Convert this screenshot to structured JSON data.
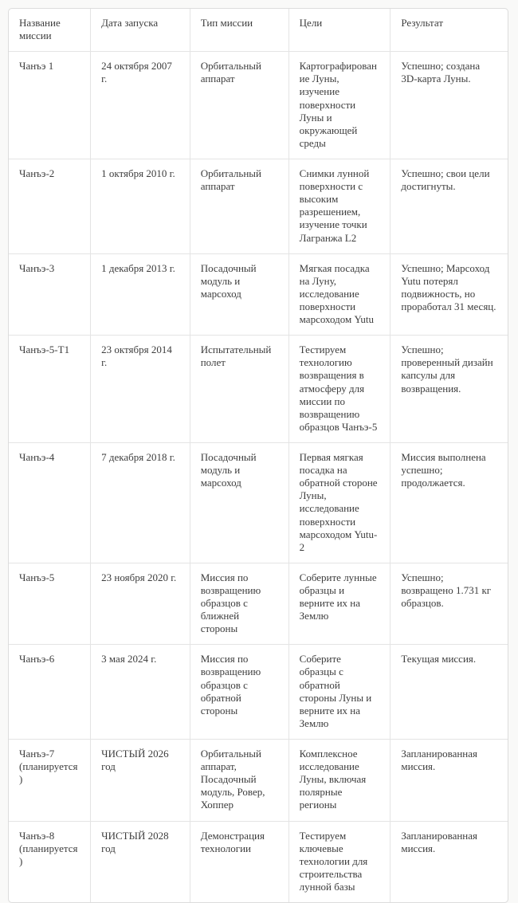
{
  "table": {
    "columns": [
      "Название миссии",
      "Дата запуска",
      "Тип миссии",
      "Цели",
      "Результат"
    ],
    "rows": [
      {
        "mission": "Чанъэ 1",
        "launch_date": "24 октября 2007 г.",
        "mission_type": "Орбитальный аппарат",
        "goals": "Картографирование Луны, изучение поверхности Луны и окружающей среды",
        "result": "Успешно; создана 3D-карта Луны."
      },
      {
        "mission": "Чанъэ-2",
        "launch_date": "1 октября 2010 г.",
        "mission_type": "Орбитальный аппарат",
        "goals": "Снимки лунной поверхности с высоким разрешением, изучение точки Лагранжа L2",
        "result": "Успешно; свои цели достигнуты."
      },
      {
        "mission": "Чанъэ-3",
        "launch_date": "1 декабря 2013 г.",
        "mission_type": "Посадочный модуль и марсоход",
        "goals": "Мягкая посадка на Луну, исследование поверхности марсоходом Yutu",
        "result": "Успешно; Марсоход Yutu потерял подвижность, но проработал 31 месяц."
      },
      {
        "mission": "Чанъэ-5-T1",
        "launch_date": "23 октября 2014 г.",
        "mission_type": "Испытательный полет",
        "goals": "Тестируем технологию возвращения в атмосферу для миссии по возвращению образцов Чанъэ-5",
        "result": "Успешно; проверенный дизайн капсулы для возвращения."
      },
      {
        "mission": "Чанъэ-4",
        "launch_date": "7 декабря 2018 г.",
        "mission_type": "Посадочный модуль и марсоход",
        "goals": "Первая мягкая посадка на обратной стороне Луны, исследование поверхности марсоходом Yutu-2",
        "result": "Миссия выполнена успешно; продолжается."
      },
      {
        "mission": "Чанъэ-5",
        "launch_date": "23 ноября 2020 г.",
        "mission_type": "Миссия по возвращению образцов с ближней стороны",
        "goals": "Соберите лунные образцы и верните их на Землю",
        "result": "Успешно; возвращено 1.731 кг образцов."
      },
      {
        "mission": "Чанъэ-6",
        "launch_date": "3 мая 2024 г.",
        "mission_type": "Миссия по возвращению образцов с обратной стороны",
        "goals": "Соберите образцы с обратной стороны Луны и верните их на Землю",
        "result": "Текущая миссия."
      },
      {
        "mission": "Чанъэ-7 (планируется)",
        "launch_date": "ЧИСТЫЙ 2026 год",
        "mission_type": "Орбитальный аппарат, Посадочный модуль, Ровер, Хоппер",
        "goals": "Комплексное исследование Луны, включая полярные регионы",
        "result": "Запланированная миссия."
      },
      {
        "mission": "Чанъэ-8 (планируется)",
        "launch_date": "ЧИСТЫЙ 2028 год",
        "mission_type": "Демонстрация технологии",
        "goals": "Тестируем ключевые технологии для строительства лунной базы",
        "result": "Запланированная миссия."
      }
    ],
    "colors": {
      "page_background": "#f9f9f8",
      "table_background": "#ffffff",
      "outer_border": "#dcdcdc",
      "inner_border": "#e4e4e4",
      "text": "#3d3d3d"
    }
  }
}
